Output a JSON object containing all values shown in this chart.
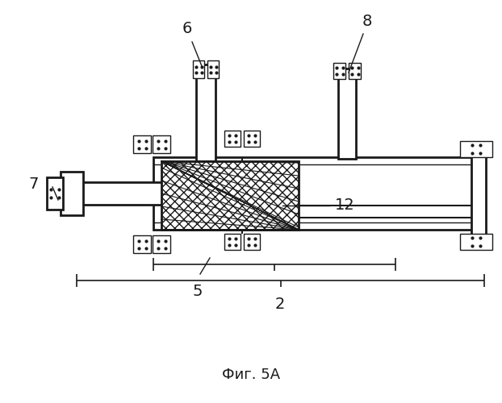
{
  "title": "Фиг. 5А",
  "background": "#ffffff",
  "line_color": "#1a1a1a",
  "fig_size": [
    6.22,
    5.0
  ],
  "dpi": 100
}
